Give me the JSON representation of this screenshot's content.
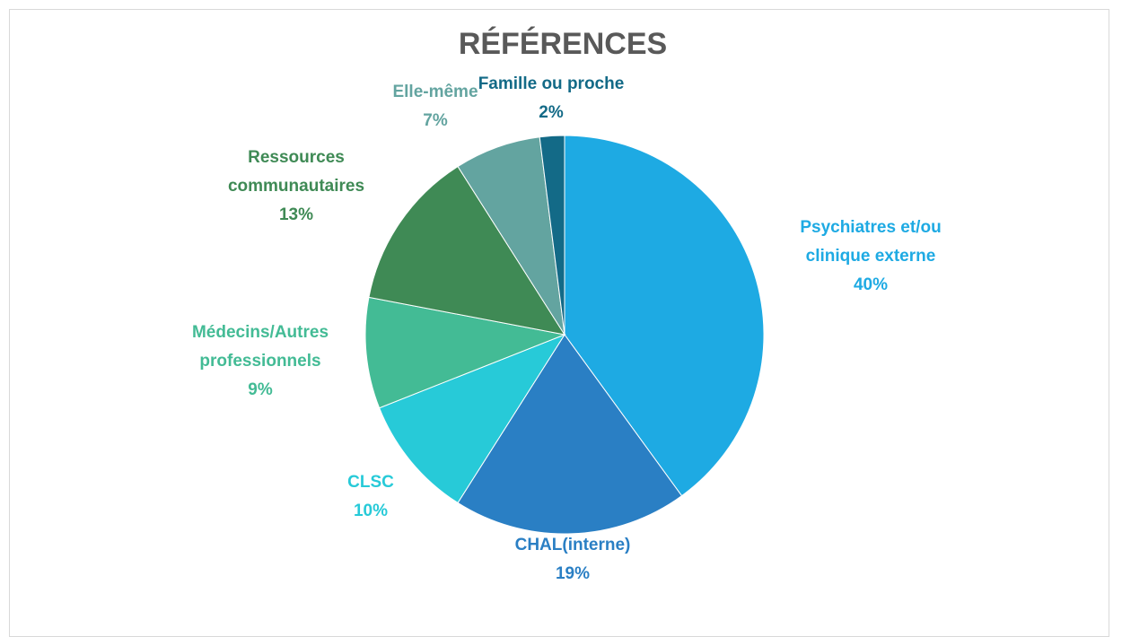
{
  "chart_data": {
    "type": "pie",
    "title": "RÉFÉRENCES",
    "categories": [
      "Psychiatres et/ou clinique externe",
      "CHAL(interne)",
      "CLSC",
      "Médecins/Autres professionnels",
      "Ressources communautaires",
      "Elle-même",
      "Famille ou proche"
    ],
    "values": [
      40,
      19,
      10,
      9,
      13,
      7,
      2
    ],
    "value_labels": [
      "40%",
      "19%",
      "10%",
      "9%",
      "13%",
      "7%",
      "2%"
    ],
    "colors": [
      "#1EAAE3",
      "#2A7FC4",
      "#27CAD8",
      "#43BB95",
      "#3F8A55",
      "#63A4A0",
      "#136A87"
    ]
  }
}
